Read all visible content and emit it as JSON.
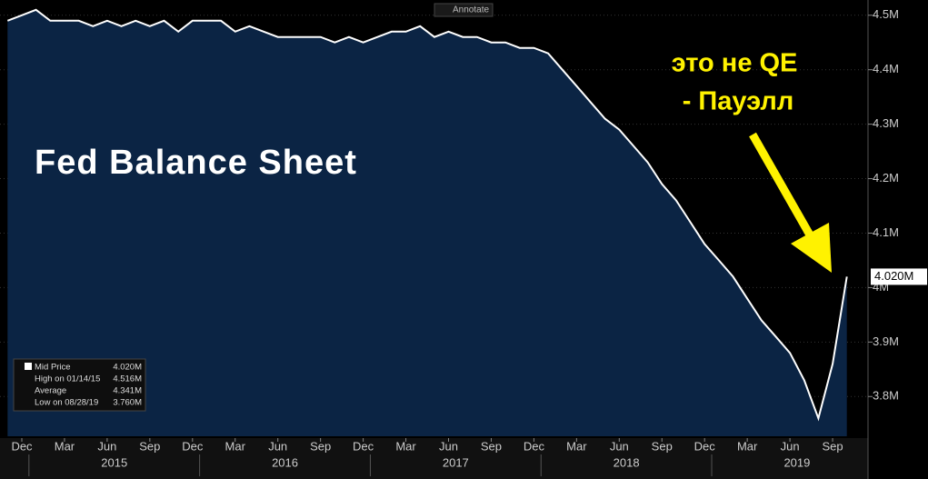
{
  "chart_data": {
    "type": "area",
    "title": "Fed Balance Sheet",
    "annotations": [
      "это не QE",
      "- Пауэлл"
    ],
    "toolbar_button": "Annotate",
    "x": [
      "2014-11",
      "2014-12",
      "2015-01",
      "2015-02",
      "2015-03",
      "2015-04",
      "2015-05",
      "2015-06",
      "2015-07",
      "2015-08",
      "2015-09",
      "2015-10",
      "2015-11",
      "2015-12",
      "2016-01",
      "2016-02",
      "2016-03",
      "2016-04",
      "2016-05",
      "2016-06",
      "2016-07",
      "2016-08",
      "2016-09",
      "2016-10",
      "2016-11",
      "2016-12",
      "2017-01",
      "2017-02",
      "2017-03",
      "2017-04",
      "2017-05",
      "2017-06",
      "2017-07",
      "2017-08",
      "2017-09",
      "2017-10",
      "2017-11",
      "2017-12",
      "2018-01",
      "2018-02",
      "2018-03",
      "2018-04",
      "2018-05",
      "2018-06",
      "2018-07",
      "2018-08",
      "2018-09",
      "2018-10",
      "2018-11",
      "2018-12",
      "2019-01",
      "2019-02",
      "2019-03",
      "2019-04",
      "2019-05",
      "2019-06",
      "2019-07",
      "2019-08",
      "2019-09",
      "2019-10"
    ],
    "series": [
      {
        "name": "Mid Price",
        "color": "#ffffff",
        "fill": "#0b2444",
        "values": [
          4.49,
          4.5,
          4.51,
          4.49,
          4.49,
          4.49,
          4.48,
          4.49,
          4.48,
          4.49,
          4.48,
          4.49,
          4.47,
          4.49,
          4.49,
          4.49,
          4.47,
          4.48,
          4.47,
          4.46,
          4.46,
          4.46,
          4.46,
          4.45,
          4.46,
          4.45,
          4.46,
          4.47,
          4.47,
          4.48,
          4.46,
          4.47,
          4.46,
          4.46,
          4.45,
          4.45,
          4.44,
          4.44,
          4.43,
          4.4,
          4.37,
          4.34,
          4.31,
          4.29,
          4.26,
          4.23,
          4.19,
          4.16,
          4.12,
          4.08,
          4.05,
          4.02,
          3.98,
          3.94,
          3.91,
          3.88,
          3.83,
          3.76,
          3.86,
          4.02
        ]
      }
    ],
    "last_value_label": "4.020M",
    "ylim": [
      3.727,
      4.528
    ],
    "yticks": [
      {
        "value": 3.8,
        "label": "3.8M"
      },
      {
        "value": 3.9,
        "label": "3.9M"
      },
      {
        "value": 4.0,
        "label": "4M"
      },
      {
        "value": 4.1,
        "label": "4.1M"
      },
      {
        "value": 4.2,
        "label": "4.2M"
      },
      {
        "value": 4.3,
        "label": "4.3M"
      },
      {
        "value": 4.4,
        "label": "4.4M"
      },
      {
        "value": 4.5,
        "label": "4.5M"
      }
    ],
    "xticks": [
      {
        "value": "2014-12",
        "label": "Dec"
      },
      {
        "value": "2015-03",
        "label": "Mar"
      },
      {
        "value": "2015-06",
        "label": "Jun"
      },
      {
        "value": "2015-09",
        "label": "Sep"
      },
      {
        "value": "2015-12",
        "label": "Dec"
      },
      {
        "value": "2016-03",
        "label": "Mar"
      },
      {
        "value": "2016-06",
        "label": "Jun"
      },
      {
        "value": "2016-09",
        "label": "Sep"
      },
      {
        "value": "2016-12",
        "label": "Dec"
      },
      {
        "value": "2017-03",
        "label": "Mar"
      },
      {
        "value": "2017-06",
        "label": "Jun"
      },
      {
        "value": "2017-09",
        "label": "Sep"
      },
      {
        "value": "2017-12",
        "label": "Dec"
      },
      {
        "value": "2018-03",
        "label": "Mar"
      },
      {
        "value": "2018-06",
        "label": "Jun"
      },
      {
        "value": "2018-09",
        "label": "Sep"
      },
      {
        "value": "2018-12",
        "label": "Dec"
      },
      {
        "value": "2019-03",
        "label": "Mar"
      },
      {
        "value": "2019-06",
        "label": "Jun"
      },
      {
        "value": "2019-09",
        "label": "Sep"
      }
    ],
    "year_labels": [
      "2015",
      "2016",
      "2017",
      "2018",
      "2019"
    ],
    "legend": [
      {
        "name": "Mid Price",
        "value": "4.020M"
      },
      {
        "name": "High on 01/14/15",
        "value": "4.516M"
      },
      {
        "name": "Average",
        "value": "4.341M"
      },
      {
        "name": "Low on 08/28/19",
        "value": "3.760M"
      }
    ]
  }
}
